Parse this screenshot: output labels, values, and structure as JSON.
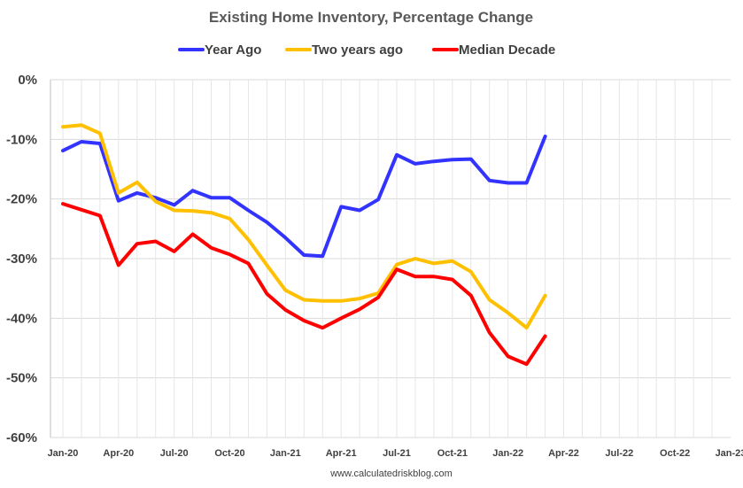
{
  "chart_data": {
    "type": "line",
    "title": "Existing Home Inventory, Percentage Change",
    "source": "www.calculatedriskblog.com",
    "xlabel": "",
    "ylabel": "",
    "ylim": [
      -60,
      0
    ],
    "yticks": [
      0,
      -10,
      -20,
      -30,
      -40,
      -50,
      -60
    ],
    "ytick_labels": [
      "0%",
      "-10%",
      "-20%",
      "-30%",
      "-40%",
      "-50%",
      "-60%"
    ],
    "xtick_labels": [
      "Jan-20",
      "Apr-20",
      "Jul-20",
      "Oct-20",
      "Jan-21",
      "Apr-21",
      "Jul-21",
      "Oct-21",
      "Jan-22",
      "Apr-22",
      "Jul-22",
      "Oct-22",
      "Jan-23"
    ],
    "x": [
      "Jan-20",
      "Feb-20",
      "Mar-20",
      "Apr-20",
      "May-20",
      "Jun-20",
      "Jul-20",
      "Aug-20",
      "Sep-20",
      "Oct-20",
      "Nov-20",
      "Dec-20",
      "Jan-21",
      "Feb-21",
      "Mar-21",
      "Apr-21",
      "May-21",
      "Jun-21",
      "Jul-21",
      "Aug-21",
      "Sep-21",
      "Oct-21",
      "Nov-21",
      "Dec-21",
      "Jan-22",
      "Feb-22",
      "Mar-22"
    ],
    "legend_position": "top",
    "grid": true,
    "series": [
      {
        "name": "Year Ago",
        "color": "#3333ff",
        "values": [
          -11.9,
          -10.4,
          -10.7,
          -20.3,
          -19.0,
          -19.8,
          -21.0,
          -18.6,
          -19.8,
          -19.8,
          -21.9,
          -23.9,
          -26.5,
          -29.4,
          -29.6,
          -21.3,
          -21.9,
          -20.1,
          -12.6,
          -14.1,
          -13.7,
          -13.4,
          -13.3,
          -16.9,
          -17.3,
          -17.3,
          -9.5
        ]
      },
      {
        "name": "Two years ago",
        "color": "#ffc000",
        "values": [
          -7.9,
          -7.6,
          -9.0,
          -19.0,
          -17.2,
          -20.4,
          -21.9,
          -22.0,
          -22.3,
          -23.3,
          -26.8,
          -31.1,
          -35.3,
          -36.9,
          -37.1,
          -37.1,
          -36.7,
          -35.8,
          -31.0,
          -30.0,
          -30.8,
          -30.4,
          -32.2,
          -36.9,
          -39.1,
          -41.6,
          -36.2
        ]
      },
      {
        "name": "Median Decade",
        "color": "#ff0000",
        "values": [
          -20.8,
          -21.8,
          -22.8,
          -31.1,
          -27.5,
          -27.1,
          -28.8,
          -25.9,
          -28.2,
          -29.3,
          -30.8,
          -35.9,
          -38.6,
          -40.4,
          -41.6,
          -40.0,
          -38.5,
          -36.5,
          -31.8,
          -33.0,
          -33.0,
          -33.5,
          -36.2,
          -42.4,
          -46.4,
          -47.7,
          -43.0
        ]
      }
    ]
  }
}
